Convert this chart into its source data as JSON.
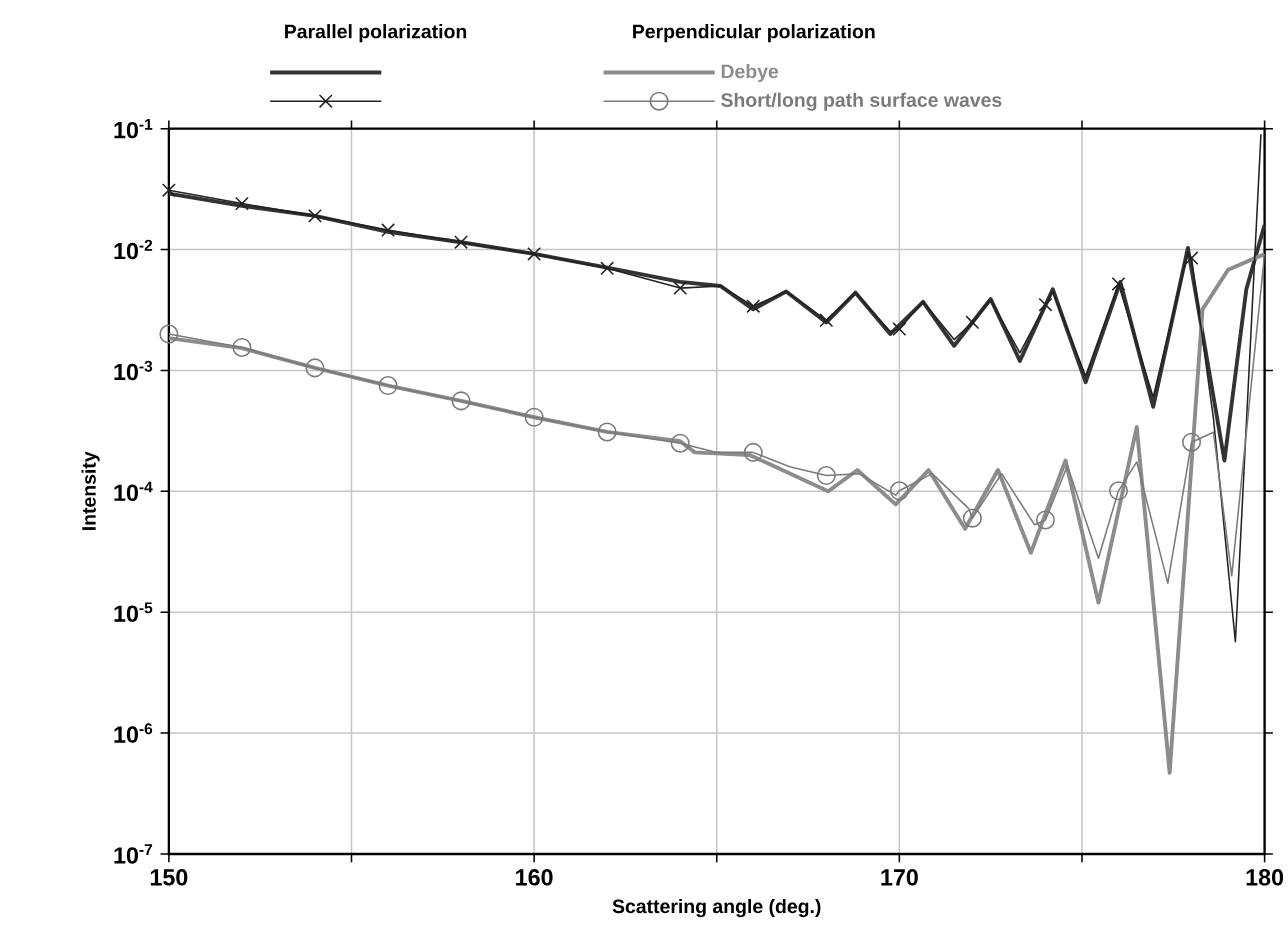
{
  "chart_data": {
    "type": "line",
    "xlabel": "Scattering angle (deg.)",
    "ylabel": "Intensity",
    "annotations": [
      "Parallel polarization",
      "Perpendicular polarization"
    ],
    "xlim": [
      150,
      180
    ],
    "ylim": [
      1e-07,
      0.1
    ],
    "log": "y",
    "grid": true,
    "legend": "top",
    "xticks": [
      150,
      {
        "value": 155,
        "label": null
      },
      160,
      {
        "value": 165,
        "label": null
      },
      170,
      {
        "value": 175,
        "label": null
      },
      180
    ],
    "yticks": [
      {
        "value": 1e-07,
        "label": "10$^{-7}$"
      },
      {
        "value": 1e-06,
        "label": "10$^{-6}$"
      },
      {
        "value": 1e-05,
        "label": "10$^{-5}$"
      },
      {
        "value": 0.0001,
        "label": "10$^{-4}$"
      },
      {
        "value": 0.001,
        "label": "10$^{-3}$"
      },
      {
        "value": 0.01,
        "label": "10$^{-2}$"
      },
      {
        "value": 0.1,
        "label": "10$^{-1}$"
      }
    ],
    "series": [
      {
        "color": "#333333",
        "x": [
          150,
          152,
          154,
          156,
          158,
          160,
          162,
          164,
          165.1,
          166,
          166.9,
          168,
          168.8,
          169.75,
          170.65,
          171.5,
          172.5,
          173.3,
          174.2,
          175.1,
          176.05,
          176.95,
          177.9,
          178.9,
          179.5,
          180
        ],
        "values": [
          0.029,
          0.023,
          0.019,
          0.014,
          0.0115,
          0.0092,
          0.0071,
          0.0054,
          0.005,
          0.0032,
          0.0045,
          0.0025,
          0.0044,
          0.002,
          0.0037,
          0.0016,
          0.0039,
          0.0012,
          0.0047,
          0.0008,
          0.0054,
          0.0005,
          0.0103,
          0.00018,
          0.0047,
          0.016
        ]
      },
      {
        "name": "Debye",
        "color": "#8c8c8c",
        "x": [
          150,
          152,
          154,
          156,
          158,
          160,
          162,
          164,
          164.4,
          165.9,
          168.05,
          168.85,
          169.9,
          170.8,
          171.8,
          172.7,
          173.6,
          174.55,
          175.45,
          176.5,
          177.4,
          178.3,
          179,
          180
        ],
        "values": [
          0.00185,
          0.00153,
          0.00105,
          0.00075,
          0.00056,
          0.00041,
          0.00031,
          0.00026,
          0.00021,
          0.0002,
          0.0001,
          0.00015,
          7.8e-05,
          0.00015,
          4.9e-05,
          0.00015,
          3.1e-05,
          0.00018,
          1.2e-05,
          0.00034,
          4.7e-07,
          0.0032,
          0.0068,
          0.0092
        ]
      },
      {
        "color": "#222222",
        "x": [
          150,
          152,
          154,
          156,
          158,
          160,
          162,
          164,
          165.1,
          166,
          166.9,
          168,
          168.8,
          169.75,
          170,
          170.65,
          171.5,
          172,
          172.5,
          173.3,
          174,
          174.2,
          175.1,
          176,
          176.95,
          177.9,
          178,
          178.6,
          179.2,
          179.9
        ],
        "values": [
          0.031,
          0.024,
          0.019,
          0.0145,
          0.0115,
          0.0092,
          0.007,
          0.0048,
          0.005,
          0.0034,
          0.0045,
          0.0026,
          0.0044,
          0.0021,
          0.0022,
          0.0037,
          0.0018,
          0.0025,
          0.0038,
          0.0014,
          0.0035,
          0.0045,
          0.0009,
          0.0052,
          0.0006,
          0.0095,
          0.0085,
          0.0004,
          5.7e-06,
          0.09
        ]
      },
      {
        "color": "#7a7a7a",
        "x": [
          150,
          152,
          154,
          156,
          158,
          160,
          162,
          164,
          165,
          166,
          167,
          168,
          168.9,
          169.9,
          170,
          170.9,
          171.9,
          172,
          172.8,
          173.7,
          174,
          174.6,
          175.45,
          176,
          176.5,
          177.35,
          178,
          178.6,
          179.1,
          180
        ],
        "values": [
          0.002,
          0.00155,
          0.00105,
          0.00075,
          0.00056,
          0.00041,
          0.00031,
          0.00025,
          0.00021,
          0.00021,
          0.00016,
          0.000135,
          0.00014,
          9.3e-05,
          0.000101,
          0.00014,
          7.2e-05,
          6e-05,
          0.00014,
          5.3e-05,
          5.8e-05,
          0.000163,
          2.8e-05,
          0.000101,
          0.000175,
          1.74e-05,
          0.000255,
          0.000308,
          2e-05,
          0.0092
        ]
      },
      {
        "type": "scatter",
        "marker": "cross",
        "color": "#222222",
        "x": [
          150,
          152,
          154,
          156,
          158,
          160,
          162,
          164,
          166,
          168,
          170,
          172,
          174,
          176,
          178
        ],
        "values": [
          0.031,
          0.024,
          0.019,
          0.0145,
          0.0115,
          0.0092,
          0.007,
          0.0048,
          0.0034,
          0.0026,
          0.0022,
          0.0025,
          0.0035,
          0.0052,
          0.0085
        ]
      },
      {
        "name": "Short/long path surface waves",
        "type": "scatter",
        "marker": "circle",
        "color": "#7a7a7a",
        "x": [
          150,
          152,
          154,
          156,
          158,
          160,
          162,
          164,
          166,
          168,
          170,
          172,
          174,
          176,
          178
        ],
        "values": [
          0.002,
          0.00155,
          0.00105,
          0.00075,
          0.00056,
          0.00041,
          0.00031,
          0.00025,
          0.00021,
          0.000135,
          0.000101,
          6e-05,
          5.8e-05,
          0.000101,
          0.000255
        ]
      }
    ]
  }
}
